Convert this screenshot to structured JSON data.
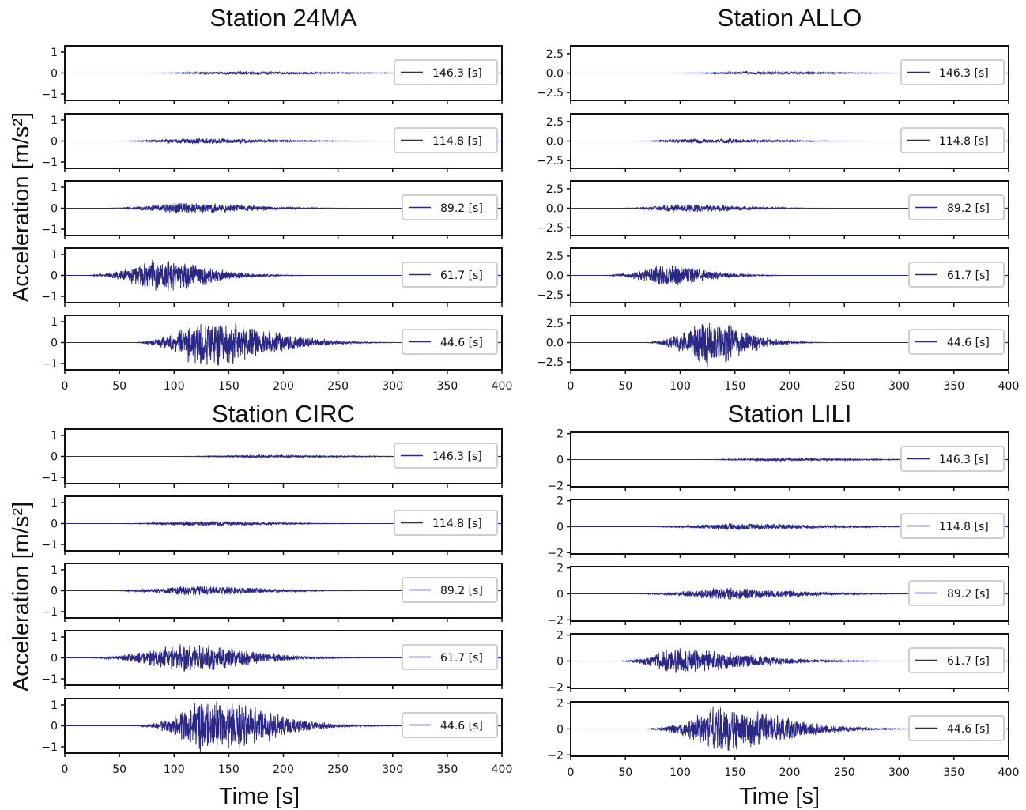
{
  "figure": {
    "ylabel": "Acceleration [m/s²]",
    "xlabel": "Time [s]"
  },
  "chart_data": [
    {
      "type": "line",
      "title": "Station 24MA",
      "xlim": [
        0,
        400
      ],
      "xticks": [
        0,
        50,
        100,
        150,
        200,
        250,
        300,
        350,
        400
      ],
      "line_color": "#2b2787",
      "subplots": [
        {
          "legend": "146.3 [s]",
          "ylim": [
            -1.3,
            1.3
          ],
          "yticks": [
            1,
            0,
            -1
          ],
          "ytick_labels": [
            "1",
            "0",
            "−1"
          ],
          "envelope": {
            "start": 60,
            "peak_time": 150,
            "rise": 90,
            "decay": 120,
            "peak_amplitude": 0.08
          }
        },
        {
          "legend": "114.8 [s]",
          "ylim": [
            -1.3,
            1.3
          ],
          "yticks": [
            1,
            0,
            -1
          ],
          "ytick_labels": [
            "1",
            "0",
            "−1"
          ],
          "envelope": {
            "start": 40,
            "peak_time": 110,
            "rise": 70,
            "decay": 100,
            "peak_amplitude": 0.15
          }
        },
        {
          "legend": "89.2 [s]",
          "ylim": [
            -1.3,
            1.3
          ],
          "yticks": [
            1,
            0,
            -1
          ],
          "ytick_labels": [
            "1",
            "0",
            "−1"
          ],
          "envelope": {
            "start": 30,
            "peak_time": 100,
            "rise": 70,
            "decay": 90,
            "peak_amplitude": 0.3
          }
        },
        {
          "legend": "61.7 [s]",
          "ylim": [
            -1.3,
            1.3
          ],
          "yticks": [
            1,
            0,
            -1
          ],
          "ytick_labels": [
            "1",
            "0",
            "−1"
          ],
          "envelope": {
            "start": 15,
            "peak_time": 80,
            "rise": 65,
            "decay": 70,
            "peak_amplitude": 0.85
          }
        },
        {
          "legend": "44.6 [s]",
          "ylim": [
            -1.3,
            1.3
          ],
          "yticks": [
            1,
            0,
            -1
          ],
          "ytick_labels": [
            "1",
            "0",
            "−1"
          ],
          "envelope": {
            "start": 60,
            "peak_time": 120,
            "rise": 60,
            "decay": 90,
            "peak_amplitude": 1.25
          }
        }
      ]
    },
    {
      "type": "line",
      "title": "Station ALLO",
      "xlim": [
        0,
        400
      ],
      "xticks": [
        0,
        50,
        100,
        150,
        200,
        250,
        300,
        350,
        400
      ],
      "line_color": "#2b2787",
      "subplots": [
        {
          "legend": "146.3 [s]",
          "ylim": [
            -3.5,
            3.5
          ],
          "yticks": [
            2.5,
            0,
            -2.5
          ],
          "ytick_labels": [
            "2.5",
            "0.0",
            "−2.5"
          ],
          "envelope": {
            "start": 80,
            "peak_time": 160,
            "rise": 80,
            "decay": 100,
            "peak_amplitude": 0.2
          }
        },
        {
          "legend": "114.8 [s]",
          "ylim": [
            -3.5,
            3.5
          ],
          "yticks": [
            2.5,
            0,
            -2.5
          ],
          "ytick_labels": [
            "2.5",
            "0.0",
            "−2.5"
          ],
          "envelope": {
            "start": 50,
            "peak_time": 110,
            "rise": 60,
            "decay": 90,
            "peak_amplitude": 0.35
          }
        },
        {
          "legend": "89.2 [s]",
          "ylim": [
            -3.5,
            3.5
          ],
          "yticks": [
            2.5,
            0,
            -2.5
          ],
          "ytick_labels": [
            "2.5",
            "0.0",
            "−2.5"
          ],
          "envelope": {
            "start": 40,
            "peak_time": 95,
            "rise": 55,
            "decay": 80,
            "peak_amplitude": 0.6
          }
        },
        {
          "legend": "61.7 [s]",
          "ylim": [
            -3.5,
            3.5
          ],
          "yticks": [
            2.5,
            0,
            -2.5
          ],
          "ytick_labels": [
            "2.5",
            "0.0",
            "−2.5"
          ],
          "envelope": {
            "start": 25,
            "peak_time": 80,
            "rise": 55,
            "decay": 60,
            "peak_amplitude": 1.5
          }
        },
        {
          "legend": "44.6 [s]",
          "ylim": [
            -3.5,
            3.5
          ],
          "yticks": [
            2.5,
            0,
            -2.5
          ],
          "ytick_labels": [
            "2.5",
            "0.0",
            "−2.5"
          ],
          "envelope": {
            "start": 65,
            "peak_time": 120,
            "rise": 55,
            "decay": 55,
            "peak_amplitude": 3.3
          }
        }
      ]
    },
    {
      "type": "line",
      "title": "Station CIRC",
      "xlim": [
        0,
        400
      ],
      "xticks": [
        0,
        50,
        100,
        150,
        200,
        250,
        300,
        350,
        400
      ],
      "line_color": "#2b2787",
      "subplots": [
        {
          "legend": "146.3 [s]",
          "ylim": [
            -1.3,
            1.3
          ],
          "yticks": [
            1,
            0,
            -1
          ],
          "ytick_labels": [
            "1",
            "0",
            "−1"
          ],
          "envelope": {
            "start": 80,
            "peak_time": 170,
            "rise": 90,
            "decay": 110,
            "peak_amplitude": 0.07
          }
        },
        {
          "legend": "114.8 [s]",
          "ylim": [
            -1.3,
            1.3
          ],
          "yticks": [
            1,
            0,
            -1
          ],
          "ytick_labels": [
            "1",
            "0",
            "−1"
          ],
          "envelope": {
            "start": 40,
            "peak_time": 110,
            "rise": 70,
            "decay": 100,
            "peak_amplitude": 0.12
          }
        },
        {
          "legend": "89.2 [s]",
          "ylim": [
            -1.3,
            1.3
          ],
          "yticks": [
            1,
            0,
            -1
          ],
          "ytick_labels": [
            "1",
            "0",
            "−1"
          ],
          "envelope": {
            "start": 30,
            "peak_time": 110,
            "rise": 80,
            "decay": 90,
            "peak_amplitude": 0.25
          }
        },
        {
          "legend": "61.7 [s]",
          "ylim": [
            -1.3,
            1.3
          ],
          "yticks": [
            1,
            0,
            -1
          ],
          "ytick_labels": [
            "1",
            "0",
            "−1"
          ],
          "envelope": {
            "start": 15,
            "peak_time": 100,
            "rise": 85,
            "decay": 90,
            "peak_amplitude": 0.75
          }
        },
        {
          "legend": "44.6 [s]",
          "ylim": [
            -1.3,
            1.3
          ],
          "yticks": [
            1,
            0,
            -1
          ],
          "ytick_labels": [
            "1",
            "0",
            "−1"
          ],
          "envelope": {
            "start": 60,
            "peak_time": 125,
            "rise": 65,
            "decay": 85,
            "peak_amplitude": 1.4
          }
        }
      ]
    },
    {
      "type": "line",
      "title": "Station LILI",
      "xlim": [
        0,
        400
      ],
      "xticks": [
        0,
        50,
        100,
        150,
        200,
        250,
        300,
        350,
        400
      ],
      "line_color": "#2b2787",
      "subplots": [
        {
          "legend": "146.3 [s]",
          "ylim": [
            -2.1,
            2.1
          ],
          "yticks": [
            2,
            0,
            -2
          ],
          "ytick_labels": [
            "2",
            "0",
            "−2"
          ],
          "envelope": {
            "start": 100,
            "peak_time": 180,
            "rise": 80,
            "decay": 110,
            "peak_amplitude": 0.12
          }
        },
        {
          "legend": "114.8 [s]",
          "ylim": [
            -2.1,
            2.1
          ],
          "yticks": [
            2,
            0,
            -2
          ],
          "ytick_labels": [
            "2",
            "0",
            "−2"
          ],
          "envelope": {
            "start": 60,
            "peak_time": 140,
            "rise": 80,
            "decay": 110,
            "peak_amplitude": 0.3
          }
        },
        {
          "legend": "89.2 [s]",
          "ylim": [
            -2.1,
            2.1
          ],
          "yticks": [
            2,
            0,
            -2
          ],
          "ytick_labels": [
            "2",
            "0",
            "−2"
          ],
          "envelope": {
            "start": 50,
            "peak_time": 130,
            "rise": 80,
            "decay": 100,
            "peak_amplitude": 0.5
          }
        },
        {
          "legend": "61.7 [s]",
          "ylim": [
            -2.1,
            2.1
          ],
          "yticks": [
            2,
            0,
            -2
          ],
          "ytick_labels": [
            "2",
            "0",
            "−2"
          ],
          "envelope": {
            "start": 40,
            "peak_time": 90,
            "rise": 50,
            "decay": 100,
            "peak_amplitude": 1.1
          }
        },
        {
          "legend": "44.6 [s]",
          "ylim": [
            -2.1,
            2.1
          ],
          "yticks": [
            2,
            0,
            -2
          ],
          "ytick_labels": [
            "2",
            "0",
            "−2"
          ],
          "envelope": {
            "start": 65,
            "peak_time": 130,
            "rise": 65,
            "decay": 90,
            "peak_amplitude": 1.95
          }
        }
      ]
    }
  ]
}
